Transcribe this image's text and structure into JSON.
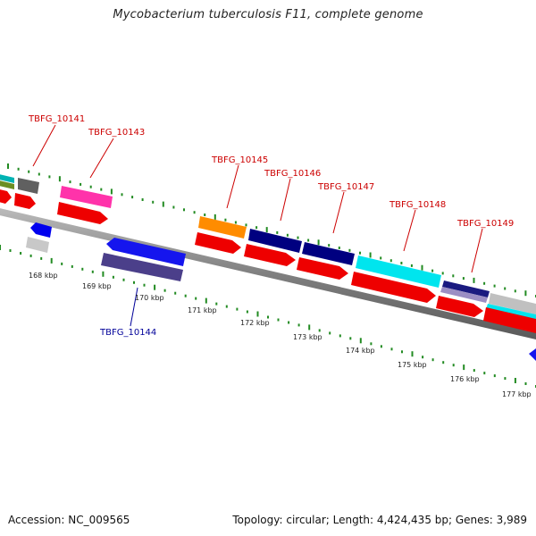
{
  "title": "Mycobacterium tuberculosis F11, complete genome",
  "footer": {
    "accession": "Accession: NC_009565",
    "topology": "Topology: circular; Length: 4,424,435 bp; Genes: 3,989"
  },
  "colors": {
    "gene_label_top": "#cc0000",
    "gene_label_bottom": "#000099",
    "backbone": "#888888",
    "tick": "#228b22"
  },
  "gene_labels": [
    {
      "text": "TBFG_10141",
      "side": "top"
    },
    {
      "text": "TBFG_10143",
      "side": "top"
    },
    {
      "text": "TBFG_10145",
      "side": "top"
    },
    {
      "text": "TBFG_10146",
      "side": "top"
    },
    {
      "text": "TBFG_10147",
      "side": "top"
    },
    {
      "text": "TBFG_10148",
      "side": "top"
    },
    {
      "text": "TBFG_10149",
      "side": "top"
    },
    {
      "text": "TBFG_10144",
      "side": "bottom"
    }
  ],
  "ticks": [
    "168 kbp",
    "169 kbp",
    "170 kbp",
    "171 kbp",
    "172 kbp",
    "173 kbp",
    "174 kbp",
    "175 kbp",
    "176 kbp",
    "177 kbp"
  ]
}
